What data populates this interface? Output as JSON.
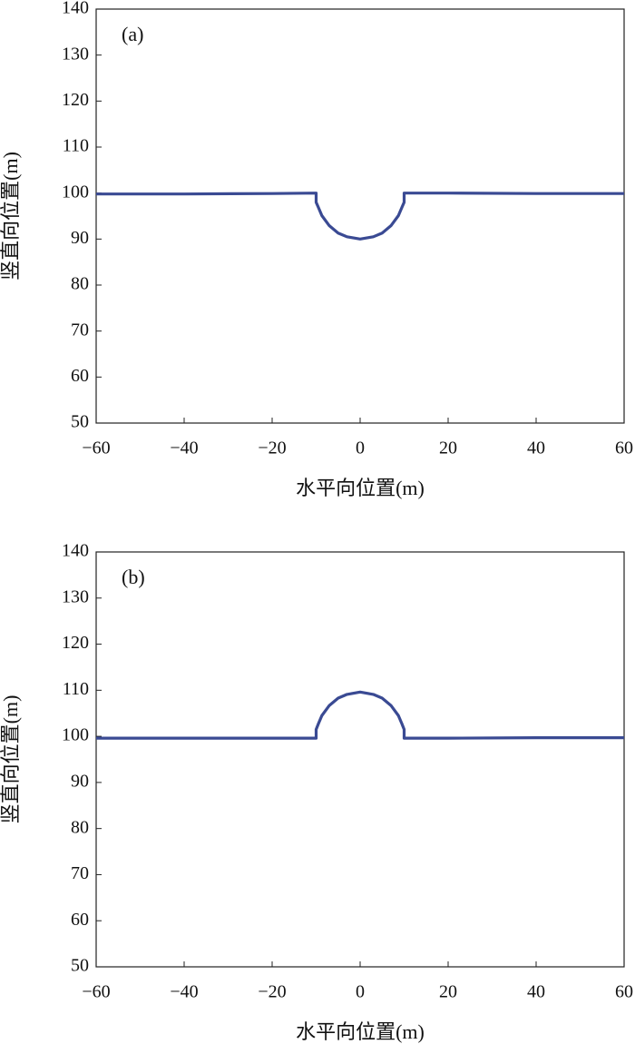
{
  "chart_data": [
    {
      "type": "line",
      "annotation": "(a)",
      "xlabel": "水平向位置(m)",
      "ylabel": "竖直向位置(m)",
      "color": "#3a4a93",
      "x": [
        -60,
        -40,
        -20,
        -10,
        -10,
        -9.5,
        -8.7,
        -7,
        -5,
        -3,
        0,
        3,
        5,
        7,
        8.7,
        9.5,
        10,
        10,
        20,
        40,
        60
      ],
      "values": [
        99.8,
        99.8,
        99.9,
        100,
        98,
        96.9,
        95.1,
        92.9,
        91.3,
        90.5,
        90,
        90.5,
        91.3,
        92.9,
        95.1,
        96.9,
        98,
        100,
        100,
        99.9,
        99.9
      ],
      "xlim": [
        -60,
        60
      ],
      "ylim": [
        50,
        140
      ],
      "xticks": [
        {
          "value": -60,
          "label": "−60"
        },
        {
          "value": -40,
          "label": "−40"
        },
        {
          "value": -20,
          "label": "−20"
        },
        0,
        20,
        40,
        60
      ],
      "yticks": [
        50,
        60,
        70,
        80,
        90,
        100,
        110,
        120,
        130,
        140
      ]
    },
    {
      "type": "line",
      "annotation": "(b)",
      "xlabel": "水平向位置(m)",
      "ylabel": "竖直向位置(m)",
      "color": "#3a4a93",
      "x": [
        -60,
        -40,
        -20,
        -10,
        -10,
        -9.5,
        -8.7,
        -7,
        -5,
        -3,
        0,
        3,
        5,
        7,
        8.7,
        9.5,
        10,
        10,
        20,
        40,
        60
      ],
      "values": [
        99.6,
        99.6,
        99.6,
        99.6,
        101.5,
        102.7,
        104.5,
        106.7,
        108.3,
        109.1,
        109.6,
        109.1,
        108.3,
        106.7,
        104.5,
        102.7,
        101.5,
        99.6,
        99.6,
        99.7,
        99.7
      ],
      "xlim": [
        -60,
        60
      ],
      "ylim": [
        50,
        140
      ],
      "xticks": [
        {
          "value": -60,
          "label": "−60"
        },
        {
          "value": -40,
          "label": "−40"
        },
        {
          "value": -20,
          "label": "−20"
        },
        0,
        20,
        40,
        60
      ],
      "yticks": [
        50,
        60,
        70,
        80,
        90,
        100,
        110,
        120,
        130,
        140
      ]
    }
  ]
}
